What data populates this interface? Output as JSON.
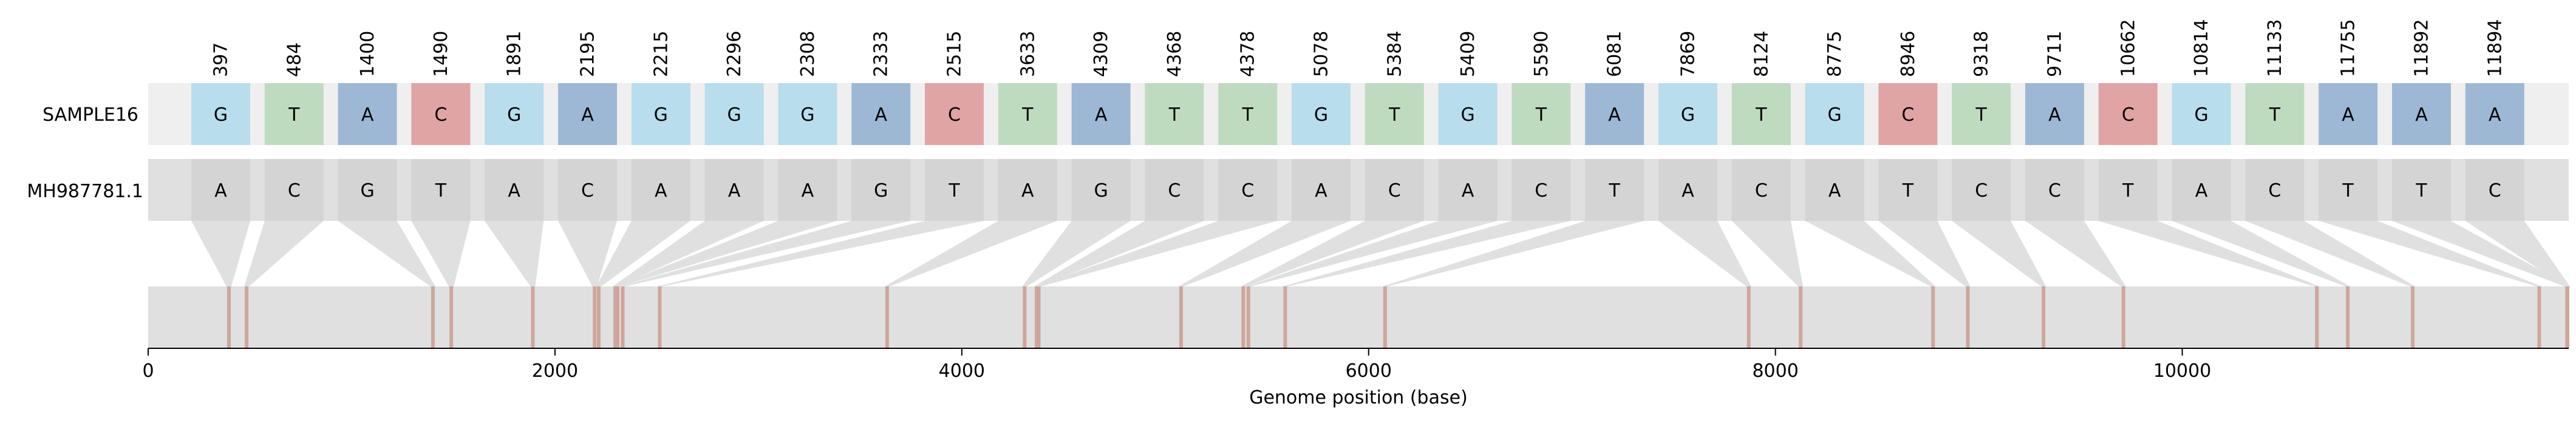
{
  "chart_data": {
    "type": "snp-alignment",
    "sample_name": "SAMPLE16",
    "reference_name": "MH987781.1",
    "xlabel": "Genome position (base)",
    "xlim": [
      0,
      11900
    ],
    "xticks": [
      0,
      2000,
      4000,
      6000,
      8000,
      10000
    ],
    "positions": [
      397,
      484,
      1400,
      1490,
      1891,
      2195,
      2215,
      2296,
      2308,
      2333,
      2515,
      3633,
      4309,
      4368,
      4378,
      5078,
      5384,
      5409,
      5590,
      6081,
      7869,
      8124,
      8775,
      8946,
      9318,
      9711,
      10662,
      10814,
      11133,
      11755,
      11892,
      11894
    ],
    "sample_bases": [
      "G",
      "T",
      "A",
      "C",
      "G",
      "A",
      "G",
      "G",
      "G",
      "A",
      "C",
      "T",
      "A",
      "T",
      "T",
      "G",
      "T",
      "G",
      "T",
      "A",
      "G",
      "T",
      "G",
      "C",
      "T",
      "A",
      "C",
      "G",
      "T",
      "A",
      "A",
      "A"
    ],
    "reference_bases": [
      "A",
      "C",
      "G",
      "T",
      "A",
      "C",
      "A",
      "A",
      "A",
      "G",
      "T",
      "A",
      "G",
      "C",
      "C",
      "A",
      "C",
      "A",
      "C",
      "T",
      "A",
      "C",
      "A",
      "T",
      "C",
      "C",
      "T",
      "A",
      "C",
      "T",
      "T",
      "C"
    ],
    "base_colors": {
      "A": "#9db8d4",
      "C": "#e0a4a4",
      "G": "#b8dded",
      "T": "#bfdbbf"
    },
    "track_color": "#e0e0e0",
    "sample_track_color": "#efefef",
    "reference_box_color": "#d4d4d4",
    "connector_color": "#e0e0e0",
    "marker_color": "#cfa69b"
  }
}
